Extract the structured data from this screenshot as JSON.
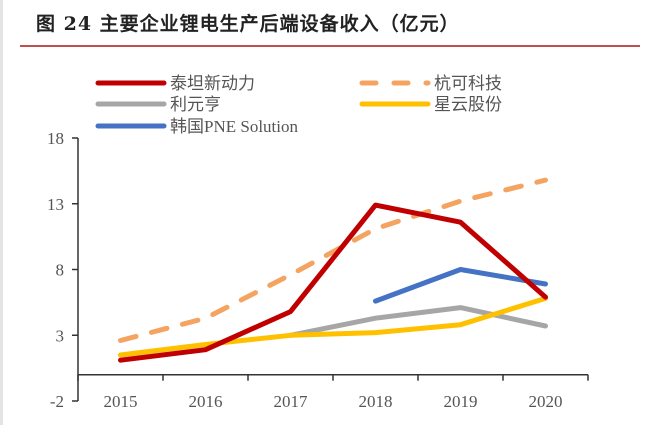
{
  "title": "图 24  主要企业锂电生产后端设备收入（亿元）",
  "chart_data": {
    "type": "line",
    "title": "图 24 主要企业锂电生产后端设备收入（亿元）",
    "xlabel": "",
    "ylabel": "",
    "categories": [
      "2015",
      "2016",
      "2017",
      "2018",
      "2019",
      "2020"
    ],
    "y_ticks": [
      "18",
      "13",
      "8",
      "3",
      "-2"
    ],
    "y_tick_values": [
      18,
      13,
      8,
      3,
      -2
    ],
    "ylim": [
      -2,
      18
    ],
    "x_axis_at": 0,
    "grid": false,
    "legend_position": "top",
    "series": [
      {
        "name": "泰坦新动力",
        "color": "#c00000",
        "dash": false,
        "values": [
          1.1,
          1.9,
          4.8,
          12.9,
          11.6,
          5.9
        ]
      },
      {
        "name": "杭可科技",
        "color": "#f4a460",
        "dash": true,
        "values": [
          2.6,
          4.3,
          7.6,
          11.1,
          13.2,
          14.8
        ]
      },
      {
        "name": "利元亨",
        "color": "#a6a6a6",
        "dash": false,
        "values": [
          null,
          null,
          3.0,
          4.3,
          5.1,
          3.7
        ]
      },
      {
        "name": "星云股份",
        "color": "#ffc000",
        "dash": false,
        "values": [
          1.5,
          2.3,
          3.0,
          3.2,
          3.8,
          5.8
        ]
      },
      {
        "name": "韩国PNE Solution",
        "color": "#4472c4",
        "dash": false,
        "values": [
          null,
          null,
          null,
          5.6,
          8.0,
          6.9
        ]
      }
    ]
  }
}
